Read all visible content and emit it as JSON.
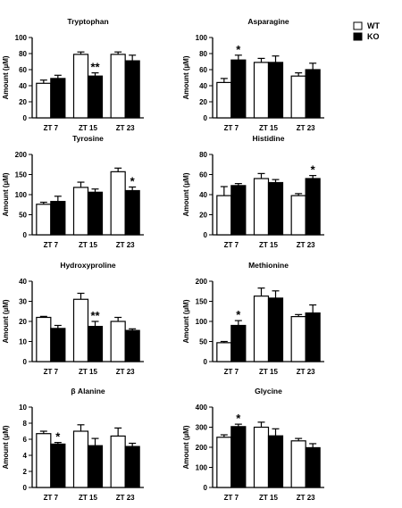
{
  "legend": {
    "items": [
      {
        "label": "WT",
        "color": "#ffffff"
      },
      {
        "label": "KO",
        "color": "#000000"
      }
    ]
  },
  "chart_data": [
    {
      "type": "bar",
      "title": "Tryptophan",
      "ylabel": "Amount (µM)",
      "categories": [
        "ZT 7",
        "ZT 15",
        "ZT 23"
      ],
      "yticks": [
        "0",
        "20",
        "40",
        "60",
        "80",
        "100"
      ],
      "ylim": [
        0,
        100
      ],
      "series": [
        {
          "name": "WT",
          "values": [
            43,
            79,
            79
          ],
          "errors": [
            4,
            3,
            3
          ]
        },
        {
          "name": "KO",
          "values": [
            49,
            52,
            71
          ],
          "errors": [
            4,
            4,
            7
          ]
        }
      ],
      "annotations": [
        "",
        "**",
        ""
      ]
    },
    {
      "type": "bar",
      "title": "Asparagine",
      "ylabel": "Amount (µM)",
      "categories": [
        "ZT 7",
        "ZT 15",
        "ZT 23"
      ],
      "yticks": [
        "0",
        "20",
        "40",
        "60",
        "80",
        "100"
      ],
      "ylim": [
        0,
        100
      ],
      "series": [
        {
          "name": "WT",
          "values": [
            44,
            69,
            52
          ],
          "errors": [
            5,
            5,
            4
          ]
        },
        {
          "name": "KO",
          "values": [
            72,
            69,
            60
          ],
          "errors": [
            6,
            8,
            8
          ]
        }
      ],
      "annotations": [
        "*",
        "",
        ""
      ]
    },
    {
      "type": "bar",
      "title": "Tyrosine",
      "ylabel": "Amount (µM)",
      "categories": [
        "ZT 7",
        "ZT 15",
        "ZT 23"
      ],
      "yticks": [
        "0",
        "50",
        "100",
        "150",
        "200"
      ],
      "ylim": [
        0,
        200
      ],
      "series": [
        {
          "name": "WT",
          "values": [
            76,
            118,
            157
          ],
          "errors": [
            5,
            13,
            9
          ]
        },
        {
          "name": "KO",
          "values": [
            83,
            106,
            110
          ],
          "errors": [
            13,
            8,
            9
          ]
        }
      ],
      "annotations": [
        "",
        "",
        "*"
      ]
    },
    {
      "type": "bar",
      "title": "Histidine",
      "ylabel": "Amount (µM)",
      "categories": [
        "ZT 7",
        "ZT 15",
        "ZT 23"
      ],
      "yticks": [
        "0",
        "20",
        "40",
        "60",
        "80"
      ],
      "ylim": [
        0,
        80
      ],
      "series": [
        {
          "name": "WT",
          "values": [
            39,
            56,
            39
          ],
          "errors": [
            9,
            5,
            2
          ]
        },
        {
          "name": "KO",
          "values": [
            49,
            52,
            56
          ],
          "errors": [
            2,
            3,
            3
          ]
        }
      ],
      "annotations": [
        "",
        "",
        "*"
      ]
    },
    {
      "type": "bar",
      "title": "Hydroxyproline",
      "ylabel": "Amount (µM)",
      "categories": [
        "ZT 7",
        "ZT 15",
        "ZT 23"
      ],
      "yticks": [
        "0",
        "10",
        "20",
        "30",
        "40"
      ],
      "ylim": [
        0,
        40
      ],
      "series": [
        {
          "name": "WT",
          "values": [
            22,
            31,
            20
          ],
          "errors": [
            0.5,
            3,
            2
          ]
        },
        {
          "name": "KO",
          "values": [
            16.5,
            17.5,
            15.5
          ],
          "errors": [
            1.5,
            2.5,
            0.8
          ]
        }
      ],
      "annotations": [
        "",
        "**",
        ""
      ]
    },
    {
      "type": "bar",
      "title": "Methionine",
      "ylabel": "Amount (µM)",
      "categories": [
        "ZT 7",
        "ZT 15",
        "ZT 23"
      ],
      "yticks": [
        "0",
        "50",
        "100",
        "150",
        "200"
      ],
      "ylim": [
        0,
        200
      ],
      "series": [
        {
          "name": "WT",
          "values": [
            47,
            163,
            112
          ],
          "errors": [
            3,
            20,
            5
          ]
        },
        {
          "name": "KO",
          "values": [
            90,
            158,
            121
          ],
          "errors": [
            12,
            18,
            20
          ]
        }
      ],
      "annotations": [
        "*",
        "",
        ""
      ]
    },
    {
      "type": "bar",
      "title": "β Alanine",
      "ylabel": "Amount (µM)",
      "categories": [
        "ZT 7",
        "ZT 15",
        "ZT 23"
      ],
      "yticks": [
        "0",
        "2",
        "4",
        "6",
        "8",
        "10"
      ],
      "ylim": [
        0,
        10
      ],
      "series": [
        {
          "name": "WT",
          "values": [
            6.7,
            7.0,
            6.4
          ],
          "errors": [
            0.3,
            0.8,
            1.0
          ]
        },
        {
          "name": "KO",
          "values": [
            5.4,
            5.2,
            5.1
          ],
          "errors": [
            0.2,
            0.9,
            0.4
          ]
        }
      ],
      "annotations": [
        "*",
        "",
        ""
      ]
    },
    {
      "type": "bar",
      "title": "Glycine",
      "ylabel": "Amount (µM)",
      "categories": [
        "ZT 7",
        "ZT 15",
        "ZT 23"
      ],
      "yticks": [
        "0",
        "100",
        "200",
        "300",
        "400"
      ],
      "ylim": [
        0,
        400
      ],
      "series": [
        {
          "name": "WT",
          "values": [
            250,
            300,
            232
          ],
          "errors": [
            12,
            25,
            12
          ]
        },
        {
          "name": "KO",
          "values": [
            303,
            257,
            198
          ],
          "errors": [
            12,
            35,
            20
          ]
        }
      ],
      "annotations": [
        "*",
        "",
        ""
      ]
    }
  ]
}
